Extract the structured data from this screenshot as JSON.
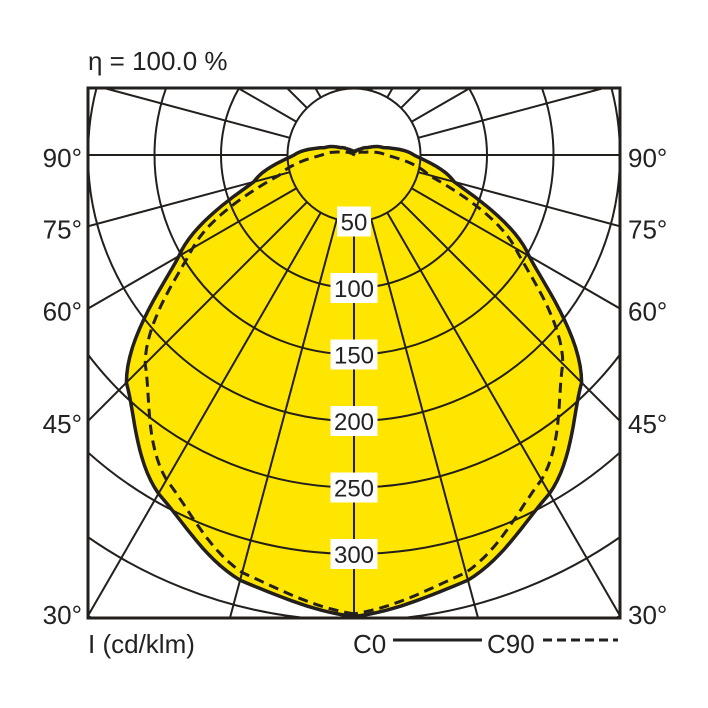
{
  "chart_data": {
    "type": "polar-line",
    "title": "η = 100.0 %",
    "unit_label": "I (cd/klm)",
    "angle_labels": [
      "90°",
      "75°",
      "60°",
      "45°",
      "30°"
    ],
    "angle_ticks": [
      90,
      75,
      60,
      45,
      30
    ],
    "radial_ticks": [
      50,
      100,
      150,
      200,
      250,
      300
    ],
    "radial_tick_labels": [
      "50",
      "100",
      "150",
      "200",
      "250",
      "300"
    ],
    "grid": true,
    "grid_angle_step": 15,
    "grid_radius_step": 50,
    "fill_color": "#ffe600",
    "line_color": "#231f1c",
    "legend": {
      "placement": "bottom-right",
      "entries": [
        {
          "label": "C0",
          "style": "solid"
        },
        {
          "label": "C90",
          "style": "dashed"
        }
      ]
    },
    "series": [
      {
        "name": "C0",
        "style": "solid",
        "angles": [
          0,
          15,
          30,
          45,
          60,
          75,
          90,
          105,
          120,
          135,
          150,
          165,
          180
        ],
        "values": [
          347,
          331,
          294,
          242,
          152,
          78,
          45,
          22,
          11,
          6,
          4,
          3,
          2
        ]
      },
      {
        "name": "C90",
        "style": "dashed",
        "angles": [
          0,
          15,
          30,
          45,
          60,
          75,
          90,
          105,
          120,
          135,
          150,
          165,
          180
        ],
        "values": [
          345,
          325,
          282,
          222,
          140,
          58,
          24,
          8,
          3,
          1,
          1,
          0,
          0
        ]
      }
    ]
  }
}
